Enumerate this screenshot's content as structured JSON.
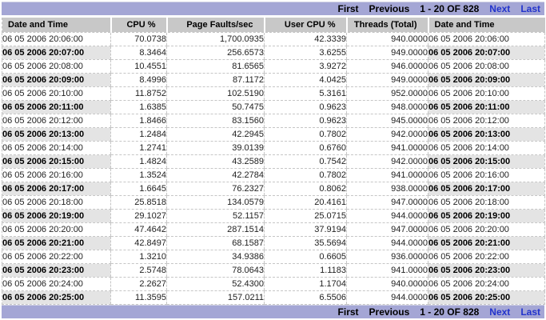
{
  "pagination": {
    "first_label": "First",
    "previous_label": "Previous",
    "range_label": "1 - 20 OF 828",
    "next_label": "Next",
    "last_label": "Last"
  },
  "table": {
    "headers": [
      "Date and Time",
      "CPU %",
      "Page Faults/sec",
      "User CPU %",
      "Threads (Total)",
      "Date and Time"
    ],
    "rows": [
      [
        "06 05 2006 20:06:00",
        "70.0738",
        "1,700.0935",
        "42.3339",
        "940.0000",
        "06 05 2006 20:06:00"
      ],
      [
        "06 05 2006 20:07:00",
        "8.3464",
        "256.6573",
        "3.6255",
        "949.0000",
        "06 05 2006 20:07:00"
      ],
      [
        "06 05 2006 20:08:00",
        "10.4551",
        "81.6565",
        "3.9272",
        "946.0000",
        "06 05 2006 20:08:00"
      ],
      [
        "06 05 2006 20:09:00",
        "8.4996",
        "87.1172",
        "4.0425",
        "949.0000",
        "06 05 2006 20:09:00"
      ],
      [
        "06 05 2006 20:10:00",
        "11.8752",
        "102.5190",
        "5.3161",
        "952.0000",
        "06 05 2006 20:10:00"
      ],
      [
        "06 05 2006 20:11:00",
        "1.6385",
        "50.7475",
        "0.9623",
        "948.0000",
        "06 05 2006 20:11:00"
      ],
      [
        "06 05 2006 20:12:00",
        "1.8466",
        "83.1560",
        "0.9623",
        "945.0000",
        "06 05 2006 20:12:00"
      ],
      [
        "06 05 2006 20:13:00",
        "1.2484",
        "42.2945",
        "0.7802",
        "942.0000",
        "06 05 2006 20:13:00"
      ],
      [
        "06 05 2006 20:14:00",
        "1.2741",
        "39.0139",
        "0.6760",
        "941.0000",
        "06 05 2006 20:14:00"
      ],
      [
        "06 05 2006 20:15:00",
        "1.4824",
        "43.2589",
        "0.7542",
        "942.0000",
        "06 05 2006 20:15:00"
      ],
      [
        "06 05 2006 20:16:00",
        "1.3524",
        "42.2784",
        "0.7802",
        "941.0000",
        "06 05 2006 20:16:00"
      ],
      [
        "06 05 2006 20:17:00",
        "1.6645",
        "76.2327",
        "0.8062",
        "938.0000",
        "06 05 2006 20:17:00"
      ],
      [
        "06 05 2006 20:18:00",
        "25.8518",
        "134.0579",
        "20.4161",
        "947.0000",
        "06 05 2006 20:18:00"
      ],
      [
        "06 05 2006 20:19:00",
        "29.1027",
        "52.1157",
        "25.0715",
        "944.0000",
        "06 05 2006 20:19:00"
      ],
      [
        "06 05 2006 20:20:00",
        "47.4642",
        "287.1514",
        "37.9194",
        "947.0000",
        "06 05 2006 20:20:00"
      ],
      [
        "06 05 2006 20:21:00",
        "42.8497",
        "68.1587",
        "35.5694",
        "944.0000",
        "06 05 2006 20:21:00"
      ],
      [
        "06 05 2006 20:22:00",
        "1.3210",
        "34.9386",
        "0.6605",
        "936.0000",
        "06 05 2006 20:22:00"
      ],
      [
        "06 05 2006 20:23:00",
        "2.5748",
        "78.0643",
        "1.1183",
        "941.0000",
        "06 05 2006 20:23:00"
      ],
      [
        "06 05 2006 20:24:00",
        "2.2627",
        "52.4300",
        "1.1704",
        "940.0000",
        "06 05 2006 20:24:00"
      ],
      [
        "06 05 2006 20:25:00",
        "11.3595",
        "157.0211",
        "6.5506",
        "944.0000",
        "06 05 2006 20:25:00"
      ]
    ]
  },
  "colors": {
    "pager_bar_bg": "#a4a6d5",
    "pager_link_blue": "#2233cc",
    "header_bg": "#c8c8c8",
    "alt_date_cell_bg": "#e4e4e4",
    "dashed_border": "#c6c6c6"
  }
}
